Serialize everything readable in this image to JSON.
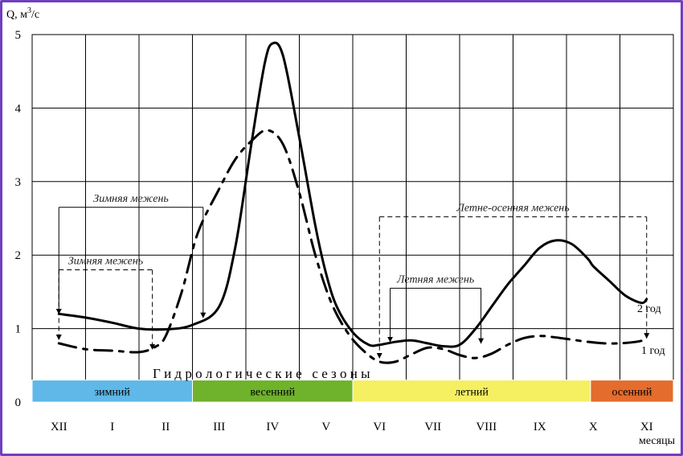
{
  "chart_data": {
    "type": "line",
    "ylabel": "Q, м³/с",
    "ylabel_parts": {
      "main": "Q, м",
      "sup": "3",
      "tail": "/с"
    },
    "xlabel": "месяцы",
    "ylim": [
      0,
      5
    ],
    "yticks": [
      0,
      1,
      2,
      3,
      4,
      5
    ],
    "categories": [
      "XII",
      "I",
      "II",
      "III",
      "IV",
      "V",
      "VI",
      "VII",
      "VIII",
      "IX",
      "X",
      "XI"
    ],
    "grid": true,
    "series": [
      {
        "name": "2 год",
        "style": "solid",
        "color": "#000000",
        "x": [
          0,
          0.5,
          1,
          1.5,
          2,
          2.5,
          3,
          3.3,
          3.6,
          3.85,
          4,
          4.2,
          4.5,
          4.8,
          5,
          5.2,
          5.5,
          5.8,
          6,
          6.3,
          6.6,
          6.9,
          7.2,
          7.5,
          7.8,
          8.1,
          8.4,
          8.7,
          9,
          9.3,
          9.6,
          9.9,
          10,
          10.3,
          10.6,
          10.9,
          11
        ],
        "y": [
          1.2,
          1.15,
          1.08,
          1.0,
          0.99,
          1.05,
          1.3,
          2.1,
          3.5,
          4.6,
          4.88,
          4.7,
          3.6,
          2.4,
          1.75,
          1.3,
          0.95,
          0.78,
          0.78,
          0.82,
          0.84,
          0.8,
          0.76,
          0.78,
          1.0,
          1.3,
          1.6,
          1.85,
          2.1,
          2.2,
          2.15,
          1.95,
          1.85,
          1.65,
          1.45,
          1.35,
          1.4
        ]
      },
      {
        "name": "1 год",
        "style": "dashed",
        "color": "#000000",
        "x": [
          0,
          0.5,
          1,
          1.5,
          1.8,
          2,
          2.3,
          2.6,
          3,
          3.3,
          3.6,
          3.9,
          4.2,
          4.5,
          4.8,
          5.1,
          5.4,
          5.7,
          6,
          6.3,
          6.6,
          6.9,
          7.2,
          7.5,
          7.8,
          8.1,
          8.4,
          8.7,
          9,
          9.3,
          9.6,
          9.9,
          10.2,
          10.5,
          10.8,
          11
        ],
        "y": [
          0.8,
          0.72,
          0.7,
          0.68,
          0.75,
          0.9,
          1.5,
          2.3,
          2.9,
          3.3,
          3.55,
          3.7,
          3.5,
          2.85,
          2.0,
          1.35,
          0.95,
          0.7,
          0.55,
          0.55,
          0.65,
          0.74,
          0.72,
          0.64,
          0.6,
          0.66,
          0.78,
          0.87,
          0.9,
          0.88,
          0.85,
          0.82,
          0.8,
          0.8,
          0.82,
          0.85
        ]
      }
    ],
    "series_labels": [
      "2 год",
      "1 год"
    ],
    "seasons_title": "Г и д р о л о г и ч е с к и е   с е з о н ы",
    "seasons": [
      {
        "name": "зимний",
        "start": -0.5,
        "end": 2.5,
        "color": "#5fb8e8"
      },
      {
        "name": "весенний",
        "start": 2.5,
        "end": 5.5,
        "color": "#6fb22b"
      },
      {
        "name": "летний",
        "start": 5.5,
        "end": 9.95,
        "color": "#f5f061"
      },
      {
        "name": "осенний",
        "start": 9.95,
        "end": 11.5,
        "color": "#e46c2c"
      }
    ],
    "annotations": [
      {
        "text": "Зимняя межень",
        "style": "solid",
        "x1": 0,
        "x2": 2.7,
        "y_top": 2.65,
        "y_end1": 1.2,
        "y_end2": 1.15
      },
      {
        "text": "Зимняя межень",
        "style": "dashed",
        "x1": 0,
        "x2": 1.75,
        "y_top": 1.8,
        "y_end1": 0.85,
        "y_end2": 0.72
      },
      {
        "text": "Летне-осенняя межень",
        "style": "dashed",
        "x1": 6.0,
        "x2": 11.0,
        "y_top": 2.52,
        "y_end1": 0.6,
        "y_end2": 0.87
      },
      {
        "text": "Летняя межень",
        "style": "solid",
        "x1": 6.2,
        "x2": 7.9,
        "y_top": 1.55,
        "y_end1": 0.82,
        "y_end2": 0.8
      }
    ]
  }
}
